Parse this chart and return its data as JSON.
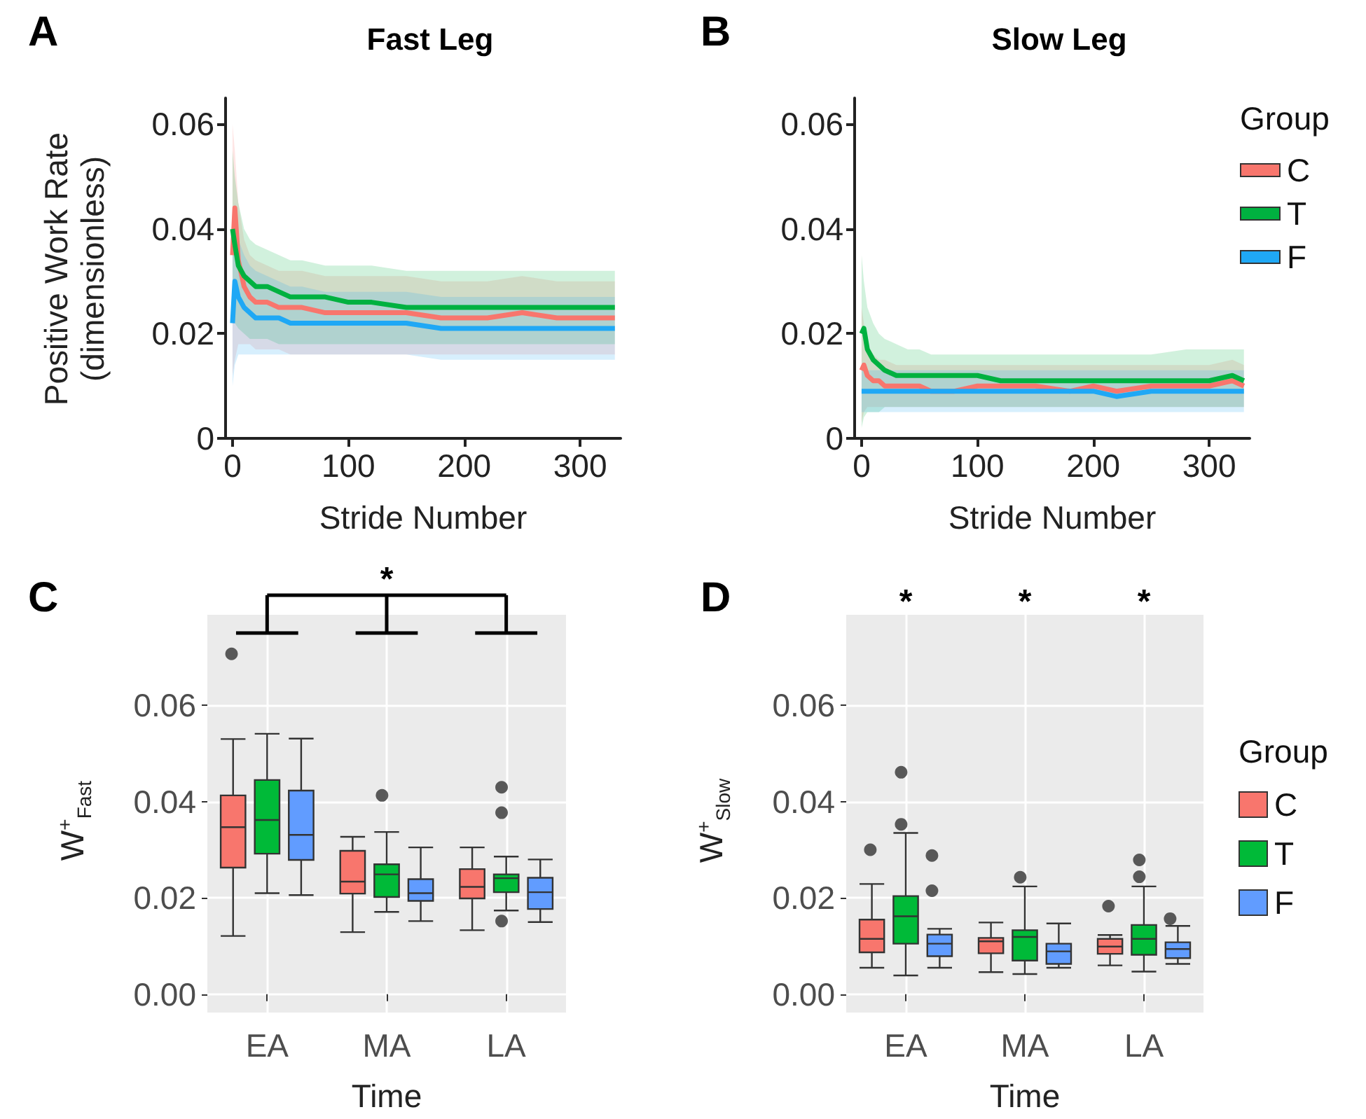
{
  "chart_data": [
    {
      "type": "line",
      "title": "Fast Leg",
      "xlabel": "Stride Number",
      "ylabel": "Positive Work Rate\n(dimensionless)",
      "annotations": [
        "A"
      ],
      "x": [
        0,
        2,
        5,
        10,
        15,
        20,
        30,
        40,
        50,
        60,
        80,
        100,
        120,
        150,
        180,
        200,
        220,
        250,
        280,
        300,
        320,
        330
      ],
      "xlim": [
        -6,
        335
      ],
      "xticks": [
        0,
        100,
        200,
        300
      ],
      "ylim": [
        0,
        0.065
      ],
      "yticks": [
        0,
        0.02,
        0.04,
        0.06
      ],
      "series": [
        {
          "color": "#f8766d",
          "values": [
            0.035,
            0.044,
            0.034,
            0.029,
            0.027,
            0.026,
            0.026,
            0.025,
            0.025,
            0.025,
            0.024,
            0.024,
            0.024,
            0.024,
            0.023,
            0.023,
            0.023,
            0.024,
            0.023,
            0.023,
            0.023,
            0.023
          ],
          "upper": [
            0.06,
            0.055,
            0.045,
            0.038,
            0.035,
            0.034,
            0.033,
            0.032,
            0.032,
            0.032,
            0.031,
            0.031,
            0.031,
            0.031,
            0.03,
            0.03,
            0.03,
            0.031,
            0.03,
            0.03,
            0.03,
            0.03
          ],
          "lower": [
            0.012,
            0.015,
            0.018,
            0.018,
            0.018,
            0.017,
            0.017,
            0.017,
            0.016,
            0.016,
            0.016,
            0.016,
            0.016,
            0.016,
            0.016,
            0.016,
            0.016,
            0.016,
            0.016,
            0.016,
            0.016,
            0.016
          ]
        },
        {
          "color": "#00b140",
          "values": [
            0.04,
            0.037,
            0.033,
            0.031,
            0.03,
            0.029,
            0.029,
            0.028,
            0.027,
            0.027,
            0.027,
            0.026,
            0.026,
            0.025,
            0.025,
            0.025,
            0.025,
            0.025,
            0.025,
            0.025,
            0.025,
            0.025
          ],
          "upper": [
            0.055,
            0.05,
            0.045,
            0.04,
            0.038,
            0.037,
            0.036,
            0.035,
            0.034,
            0.034,
            0.033,
            0.033,
            0.033,
            0.032,
            0.032,
            0.032,
            0.032,
            0.032,
            0.032,
            0.032,
            0.032,
            0.032
          ],
          "lower": [
            0.025,
            0.022,
            0.021,
            0.02,
            0.019,
            0.019,
            0.019,
            0.018,
            0.018,
            0.018,
            0.018,
            0.018,
            0.018,
            0.018,
            0.018,
            0.018,
            0.018,
            0.018,
            0.018,
            0.018,
            0.018,
            0.018
          ]
        },
        {
          "color": "#1fa8f5",
          "values": [
            0.022,
            0.03,
            0.027,
            0.025,
            0.024,
            0.023,
            0.023,
            0.023,
            0.022,
            0.022,
            0.022,
            0.022,
            0.022,
            0.022,
            0.021,
            0.021,
            0.021,
            0.021,
            0.021,
            0.021,
            0.021,
            0.021
          ],
          "upper": [
            0.04,
            0.045,
            0.038,
            0.035,
            0.033,
            0.032,
            0.031,
            0.03,
            0.029,
            0.029,
            0.028,
            0.028,
            0.028,
            0.028,
            0.027,
            0.027,
            0.027,
            0.027,
            0.027,
            0.027,
            0.027,
            0.027
          ],
          "lower": [
            0.01,
            0.014,
            0.016,
            0.016,
            0.016,
            0.016,
            0.016,
            0.016,
            0.016,
            0.016,
            0.016,
            0.016,
            0.016,
            0.016,
            0.015,
            0.015,
            0.015,
            0.015,
            0.015,
            0.015,
            0.015,
            0.015
          ]
        }
      ]
    },
    {
      "type": "line",
      "title": "Slow Leg",
      "xlabel": "Stride Number",
      "annotations": [
        "B"
      ],
      "legend": "right",
      "legend_title": "Group",
      "x": [
        0,
        2,
        5,
        10,
        15,
        20,
        30,
        40,
        50,
        60,
        80,
        100,
        120,
        150,
        180,
        200,
        220,
        250,
        280,
        300,
        320,
        330
      ],
      "xlim": [
        -6,
        335
      ],
      "xticks": [
        0,
        100,
        200,
        300
      ],
      "ylim": [
        0,
        0.065
      ],
      "yticks": [
        0,
        0.02,
        0.04,
        0.06
      ],
      "series": [
        {
          "name": "C",
          "color": "#f8766d",
          "values": [
            0.013,
            0.014,
            0.012,
            0.011,
            0.011,
            0.01,
            0.01,
            0.01,
            0.01,
            0.009,
            0.009,
            0.01,
            0.01,
            0.01,
            0.009,
            0.01,
            0.009,
            0.01,
            0.01,
            0.01,
            0.011,
            0.01
          ],
          "upper": [
            0.025,
            0.022,
            0.018,
            0.016,
            0.015,
            0.015,
            0.014,
            0.014,
            0.014,
            0.014,
            0.014,
            0.014,
            0.014,
            0.014,
            0.014,
            0.014,
            0.014,
            0.014,
            0.014,
            0.014,
            0.015,
            0.014
          ],
          "lower": [
            0.003,
            0.005,
            0.006,
            0.006,
            0.006,
            0.006,
            0.006,
            0.006,
            0.006,
            0.006,
            0.006,
            0.006,
            0.006,
            0.006,
            0.006,
            0.006,
            0.006,
            0.006,
            0.006,
            0.006,
            0.006,
            0.006
          ]
        },
        {
          "name": "T",
          "color": "#00b140",
          "values": [
            0.02,
            0.021,
            0.017,
            0.015,
            0.014,
            0.013,
            0.012,
            0.012,
            0.012,
            0.012,
            0.012,
            0.012,
            0.011,
            0.011,
            0.011,
            0.011,
            0.011,
            0.011,
            0.011,
            0.011,
            0.012,
            0.011
          ],
          "upper": [
            0.035,
            0.03,
            0.025,
            0.022,
            0.02,
            0.019,
            0.018,
            0.017,
            0.017,
            0.016,
            0.016,
            0.016,
            0.016,
            0.016,
            0.016,
            0.016,
            0.016,
            0.016,
            0.017,
            0.017,
            0.017,
            0.017
          ],
          "lower": [
            0.002,
            0.004,
            0.005,
            0.005,
            0.005,
            0.006,
            0.006,
            0.006,
            0.006,
            0.006,
            0.006,
            0.006,
            0.006,
            0.006,
            0.006,
            0.006,
            0.006,
            0.006,
            0.006,
            0.006,
            0.006,
            0.006
          ]
        },
        {
          "name": "F",
          "color": "#1fa8f5",
          "values": [
            0.009,
            0.009,
            0.009,
            0.009,
            0.009,
            0.009,
            0.009,
            0.009,
            0.009,
            0.009,
            0.009,
            0.009,
            0.009,
            0.009,
            0.009,
            0.009,
            0.008,
            0.009,
            0.009,
            0.009,
            0.009,
            0.009
          ],
          "upper": [
            0.013,
            0.013,
            0.013,
            0.013,
            0.013,
            0.013,
            0.013,
            0.013,
            0.013,
            0.013,
            0.013,
            0.013,
            0.013,
            0.013,
            0.013,
            0.013,
            0.013,
            0.013,
            0.013,
            0.013,
            0.013,
            0.013
          ],
          "lower": [
            0.005,
            0.005,
            0.005,
            0.005,
            0.005,
            0.005,
            0.005,
            0.005,
            0.005,
            0.005,
            0.005,
            0.005,
            0.005,
            0.005,
            0.005,
            0.005,
            0.005,
            0.005,
            0.005,
            0.005,
            0.005,
            0.005
          ]
        }
      ]
    },
    {
      "type": "box",
      "xlabel": "Time",
      "ylabel": "W$^{+}$$_{Fast}$",
      "annotations": [
        "C",
        "*"
      ],
      "grid": true,
      "categories": [
        "EA",
        "MA",
        "LA"
      ],
      "ylim": [
        -0.0038,
        0.0788
      ],
      "yticks": [
        {
          "value": 0,
          "label": "0.00"
        },
        {
          "value": 0.02,
          "label": "0.02"
        },
        {
          "value": 0.04,
          "label": "0.04"
        },
        {
          "value": 0.06,
          "label": "0.06"
        }
      ],
      "series": [
        {
          "color": "#f8766d",
          "boxes": [
            {
              "low": 0.0121,
              "q1": 0.0263,
              "median": 0.0347,
              "q3": 0.0413,
              "high": 0.053,
              "outliers": [
                0.0707
              ]
            },
            {
              "low": 0.0129,
              "q1": 0.0209,
              "median": 0.0234,
              "q3": 0.0298,
              "high": 0.0327
            },
            {
              "low": 0.0133,
              "q1": 0.0199,
              "median": 0.0223,
              "q3": 0.026,
              "high": 0.0305
            }
          ]
        },
        {
          "color": "#00ba38",
          "boxes": [
            {
              "low": 0.021,
              "q1": 0.0292,
              "median": 0.0362,
              "q3": 0.0445,
              "high": 0.0541
            },
            {
              "low": 0.0171,
              "q1": 0.0202,
              "median": 0.0249,
              "q3": 0.027,
              "high": 0.0337,
              "outliers": [
                0.0413
              ]
            },
            {
              "low": 0.0174,
              "q1": 0.0212,
              "median": 0.0241,
              "q3": 0.0249,
              "high": 0.0286,
              "outliers": [
                0.043,
                0.0377,
                0.0152
              ]
            }
          ]
        },
        {
          "color": "#619cff",
          "boxes": [
            {
              "low": 0.0206,
              "q1": 0.0279,
              "median": 0.0331,
              "q3": 0.0423,
              "high": 0.0531
            },
            {
              "low": 0.0152,
              "q1": 0.0194,
              "median": 0.021,
              "q3": 0.0239,
              "high": 0.0305
            },
            {
              "low": 0.015,
              "q1": 0.0177,
              "median": 0.0212,
              "q3": 0.0242,
              "high": 0.028
            }
          ]
        }
      ]
    },
    {
      "type": "box",
      "xlabel": "Time",
      "ylabel": "W$^{+}$$_{Slow}$",
      "annotations": [
        "D",
        "*",
        "*",
        "*"
      ],
      "grid": true,
      "legend": "right",
      "legend_title": "Group",
      "categories": [
        "EA",
        "MA",
        "LA"
      ],
      "ylim": [
        -0.0038,
        0.0788
      ],
      "yticks": [
        {
          "value": 0,
          "label": "0.00"
        },
        {
          "value": 0.02,
          "label": "0.02"
        },
        {
          "value": 0.04,
          "label": "0.04"
        },
        {
          "value": 0.06,
          "label": "0.06"
        }
      ],
      "series": [
        {
          "name": "C",
          "color": "#f8766d",
          "boxes": [
            {
              "low": 0.0055,
              "q1": 0.0087,
              "median": 0.0115,
              "q3": 0.0155,
              "high": 0.0229,
              "outliers": [
                0.03
              ]
            },
            {
              "low": 0.0046,
              "q1": 0.0085,
              "median": 0.011,
              "q3": 0.0117,
              "high": 0.0149
            },
            {
              "low": 0.006,
              "q1": 0.0084,
              "median": 0.0099,
              "q3": 0.0115,
              "high": 0.0123,
              "outliers": [
                0.0183
              ]
            }
          ]
        },
        {
          "name": "T",
          "color": "#00ba38",
          "boxes": [
            {
              "low": 0.0039,
              "q1": 0.0105,
              "median": 0.0162,
              "q3": 0.0204,
              "high": 0.0335,
              "outliers": [
                0.0461,
                0.0353
              ]
            },
            {
              "low": 0.0042,
              "q1": 0.007,
              "median": 0.0119,
              "q3": 0.0133,
              "high": 0.0224,
              "outliers": [
                0.0243
              ]
            },
            {
              "low": 0.0047,
              "q1": 0.0082,
              "median": 0.0115,
              "q3": 0.0144,
              "high": 0.0224,
              "outliers": [
                0.0279,
                0.0244
              ]
            }
          ]
        },
        {
          "name": "F",
          "color": "#619cff",
          "boxes": [
            {
              "low": 0.0055,
              "q1": 0.0079,
              "median": 0.0105,
              "q3": 0.0124,
              "high": 0.0136,
              "outliers": [
                0.0288,
                0.0215
              ]
            },
            {
              "low": 0.0055,
              "q1": 0.0063,
              "median": 0.0089,
              "q3": 0.0105,
              "high": 0.0147
            },
            {
              "low": 0.0063,
              "q1": 0.0075,
              "median": 0.0094,
              "q3": 0.0108,
              "high": 0.0142,
              "outliers": [
                0.0157
              ]
            }
          ]
        }
      ]
    }
  ]
}
